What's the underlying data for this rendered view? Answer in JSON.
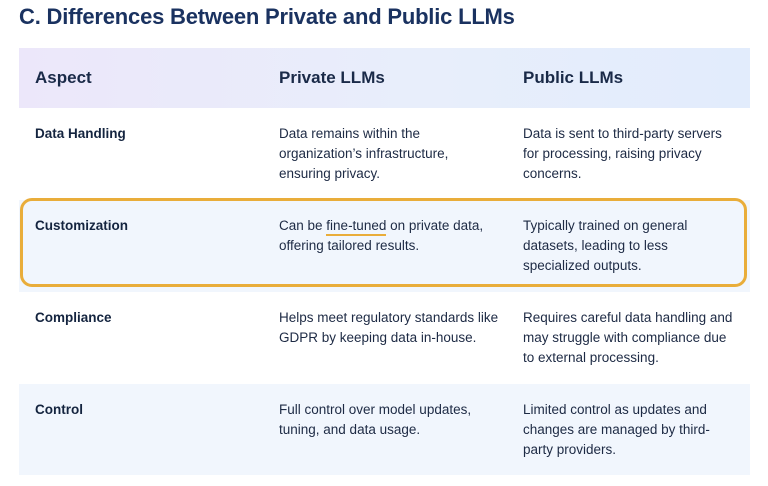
{
  "title": "C. Differences Between Private and Public LLMs",
  "columns": [
    "Aspect",
    "Private LLMs",
    "Public LLMs"
  ],
  "rows": [
    {
      "aspect": "Data Handling",
      "private": "Data remains within the organization’s infrastructure, ensuring privacy.",
      "public": "Data is sent to third-party servers for processing, raising privacy concerns."
    },
    {
      "aspect": "Customization",
      "private_pre": "Can be ",
      "private_mark": "fine-tuned",
      "private_post": " on private data, offering tailored results.",
      "public": "Typically trained on general datasets, leading to less specialized outputs."
    },
    {
      "aspect": "Compliance",
      "private": "Helps meet regulatory standards like GDPR by keeping data in-house.",
      "public": "Requires careful data handling and may struggle with compliance due to external processing."
    },
    {
      "aspect": "Control",
      "private": "Full control over model updates, tuning, and data usage.",
      "public": "Limited control as updates and changes are managed by third-party providers."
    }
  ],
  "colors": {
    "title": "#1a3260",
    "highlight": "#e9ad3a",
    "row_tint": "#f1f6fd",
    "header_start": "#ece7fa",
    "header_end": "#e2ecfc"
  }
}
